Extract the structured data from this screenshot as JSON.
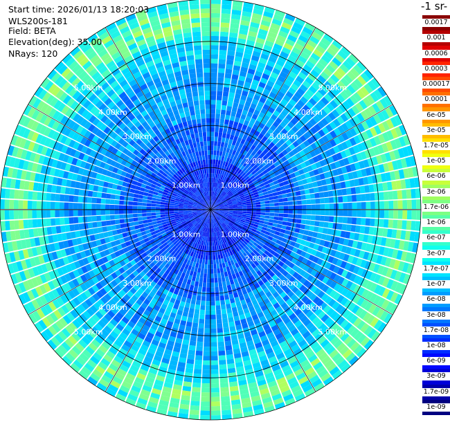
{
  "header": {
    "start_time": "Start time: 2026/01/13 18:20:03",
    "device": "WLS200s-181",
    "field": "Field: BETA",
    "elevation": "Elevation(deg): 35.00",
    "nrays": "NRays: 120"
  },
  "colorbar": {
    "units": "-1 sr-",
    "labels": [
      "0.0017",
      "0.001",
      "0.0006",
      "0.0003",
      "0.00017",
      "0.0001",
      "6e-05",
      "3e-05",
      "1.7e-05",
      "1e-05",
      "6e-06",
      "3e-06",
      "1.7e-06",
      "1e-06",
      "6e-07",
      "3e-07",
      "1.7e-07",
      "1e-07",
      "6e-08",
      "3e-08",
      "1.7e-08",
      "1e-08",
      "6e-09",
      "3e-09",
      "1.7e-09",
      "1e-09"
    ],
    "colors": [
      "#8a0000",
      "#b40000",
      "#e00000",
      "#ff2200",
      "#ff4a00",
      "#ff7000",
      "#ff9600",
      "#ffbc00",
      "#ffe000",
      "#f0ff10",
      "#c8ff3a",
      "#a0ff60",
      "#7cff84",
      "#58ffa8",
      "#34ffcc",
      "#10ffee",
      "#00e4ff",
      "#00c0ff",
      "#009cff",
      "#0078ff",
      "#0050ff",
      "#002cff",
      "#0008ff",
      "#0000d8",
      "#0000aa",
      "#000080"
    ]
  },
  "chart_data": {
    "type": "heatmap",
    "projection": "polar PPI",
    "field": "BETA",
    "n_rays": 120,
    "elevation_deg": 35.0,
    "range_max_km": 5.0,
    "range_rings_km": [
      1,
      2,
      3,
      4,
      5
    ],
    "ring_labels": [
      "1.00km",
      "2.00km",
      "3.00km",
      "4.00km",
      "5.00km"
    ],
    "value_range": [
      1e-09,
      0.0017
    ],
    "color_scale": "log"
  }
}
